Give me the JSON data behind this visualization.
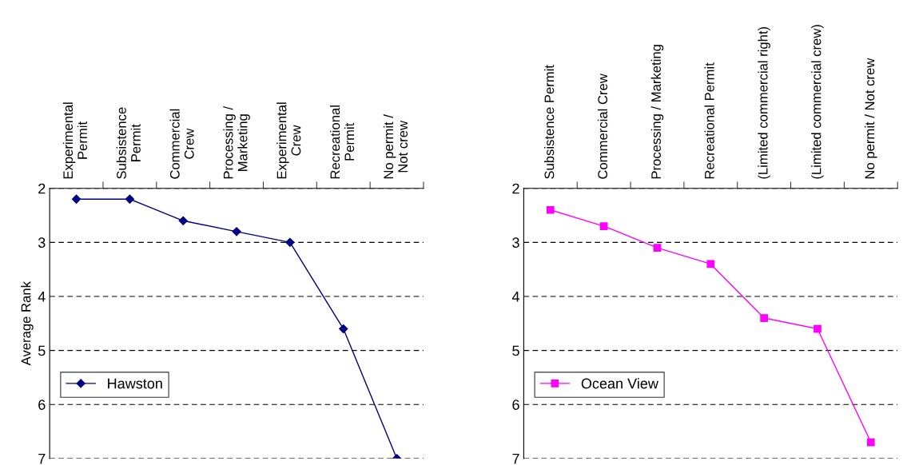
{
  "chart_data": [
    {
      "type": "line",
      "ylabel": "Average Rank",
      "categories": [
        "Experimental\nPermit",
        "Subsistence\nPermit",
        "Commercial\nCrew",
        "Processing /\nMarketing",
        "Experimental\nCrew",
        "Recreational\nPermit",
        "No permit /\nNot crew"
      ],
      "series": [
        {
          "name": "Hawston",
          "color": "#000080",
          "values": [
            2.2,
            2.2,
            2.6,
            2.8,
            3.0,
            4.6,
            7.0
          ]
        }
      ],
      "ylim": [
        7,
        2
      ],
      "yticks": [
        2,
        3,
        4,
        5,
        6,
        7
      ],
      "grid": "y",
      "legend": "bottom left",
      "marker": "diamond",
      "line_style": "solid"
    },
    {
      "type": "line",
      "categories": [
        "Subsistence Permit",
        "Commercial Crew",
        "Processing / Marketing",
        "Recreational Permit",
        "(Limited commercial right)",
        "(Limited commercial crew)",
        "No permit / Not crew"
      ],
      "series": [
        {
          "name": "Ocean View",
          "color": "#ff00ff",
          "values": [
            2.4,
            2.7,
            3.1,
            3.4,
            4.4,
            4.6,
            6.7
          ]
        }
      ],
      "ylim": [
        7,
        2
      ],
      "yticks": [
        2,
        3,
        4,
        5,
        6,
        7
      ],
      "grid": "y",
      "legend": "bottom left",
      "marker": "square",
      "line_style": "solid"
    }
  ]
}
